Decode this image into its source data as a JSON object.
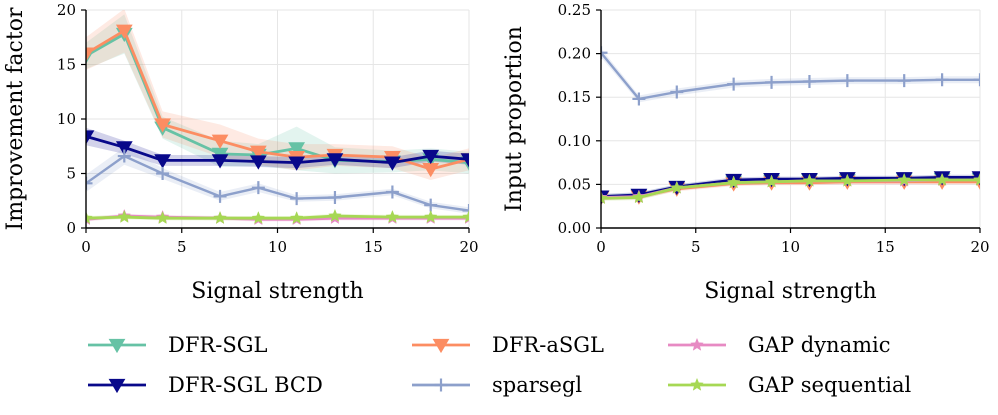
{
  "chart_data": [
    {
      "type": "line",
      "xlabel": "Signal strength",
      "ylabel": "Improvement factor",
      "xlim": [
        0,
        20
      ],
      "ylim": [
        0,
        20
      ],
      "xticks": [
        0,
        5,
        10,
        15,
        20
      ],
      "yticks": [
        0,
        5,
        10,
        15,
        20
      ],
      "grid": true,
      "x": [
        0,
        2,
        4,
        7,
        9,
        11,
        13,
        16,
        18,
        20
      ],
      "series": [
        {
          "name": "DFR-SGL",
          "color": "#66c2a5",
          "marker": "triangle-down",
          "values": [
            15.8,
            17.8,
            9.2,
            6.8,
            6.7,
            7.3,
            6.2,
            6.1,
            6.3,
            6.0
          ],
          "band": [
            1.2,
            1.8,
            1.0,
            1.2,
            1.0,
            2.0,
            1.2,
            1.0,
            1.0,
            1.0
          ]
        },
        {
          "name": "DFR-aSGL",
          "color": "#fc8d62",
          "marker": "triangle-down",
          "values": [
            16.0,
            18.1,
            9.5,
            8.0,
            7.0,
            6.5,
            6.7,
            6.5,
            5.4,
            6.3
          ],
          "band": [
            1.5,
            2.0,
            1.2,
            1.5,
            1.2,
            1.2,
            1.0,
            1.0,
            1.0,
            1.0
          ]
        },
        {
          "name": "DFR-SGL BCD",
          "color": "#08088a",
          "marker": "triangle-down",
          "values": [
            8.4,
            7.4,
            6.2,
            6.2,
            6.1,
            6.0,
            6.3,
            6.0,
            6.6,
            6.3
          ],
          "band": [
            0.8,
            0.6,
            0.5,
            0.5,
            0.5,
            0.5,
            0.5,
            0.5,
            0.5,
            0.5
          ]
        },
        {
          "name": "sparsegl",
          "color": "#8da0cb",
          "marker": "plus",
          "values": [
            4.1,
            6.6,
            5.0,
            2.9,
            3.7,
            2.7,
            2.8,
            3.3,
            2.1,
            1.6
          ],
          "band": [
            0.8,
            0.8,
            0.5,
            0.4,
            0.4,
            0.3,
            0.3,
            0.3,
            0.3,
            0.3
          ]
        },
        {
          "name": "GAP dynamic",
          "color": "#e78ac3",
          "marker": "star",
          "values": [
            0.8,
            1.1,
            1.0,
            0.9,
            0.8,
            0.8,
            0.9,
            0.9,
            0.9,
            0.9
          ],
          "band": [
            0.2,
            0.2,
            0.2,
            0.2,
            0.2,
            0.2,
            0.2,
            0.2,
            0.2,
            0.2
          ]
        },
        {
          "name": "GAP sequential",
          "color": "#a6d854",
          "marker": "star",
          "values": [
            0.9,
            1.0,
            0.9,
            0.9,
            0.9,
            0.9,
            1.1,
            1.0,
            1.0,
            1.0
          ],
          "band": [
            0.2,
            0.2,
            0.2,
            0.2,
            0.2,
            0.2,
            0.2,
            0.2,
            0.2,
            0.2
          ]
        }
      ]
    },
    {
      "type": "line",
      "xlabel": "Signal strength",
      "ylabel": "Input proportion",
      "xlim": [
        0,
        20
      ],
      "ylim": [
        0,
        0.25
      ],
      "xticks": [
        0,
        5,
        10,
        15,
        20
      ],
      "yticks": [
        0.0,
        0.05,
        0.1,
        0.15,
        0.2,
        0.25
      ],
      "grid": true,
      "x": [
        0,
        2,
        4,
        7,
        9,
        11,
        13,
        16,
        18,
        20
      ],
      "series": [
        {
          "name": "DFR-SGL",
          "color": "#66c2a5",
          "marker": "triangle-down",
          "values": [
            0.036,
            0.037,
            0.047,
            0.053,
            0.054,
            0.055,
            0.055,
            0.056,
            0.056,
            0.056
          ],
          "band": [
            0.003,
            0.003,
            0.003,
            0.003,
            0.003,
            0.003,
            0.003,
            0.003,
            0.003,
            0.003
          ]
        },
        {
          "name": "DFR-aSGL",
          "color": "#fc8d62",
          "marker": "triangle-down",
          "values": [
            0.035,
            0.036,
            0.045,
            0.051,
            0.052,
            0.052,
            0.053,
            0.053,
            0.053,
            0.053
          ],
          "band": [
            0.003,
            0.003,
            0.003,
            0.003,
            0.003,
            0.003,
            0.003,
            0.003,
            0.003,
            0.003
          ]
        },
        {
          "name": "DFR-SGL BCD",
          "color": "#08088a",
          "marker": "triangle-down",
          "values": [
            0.036,
            0.038,
            0.047,
            0.055,
            0.056,
            0.056,
            0.057,
            0.057,
            0.058,
            0.058
          ],
          "band": [
            0.003,
            0.003,
            0.003,
            0.003,
            0.003,
            0.003,
            0.003,
            0.003,
            0.003,
            0.003
          ]
        },
        {
          "name": "sparsegl",
          "color": "#8da0cb",
          "marker": "plus",
          "values": [
            0.201,
            0.148,
            0.156,
            0.165,
            0.167,
            0.168,
            0.169,
            0.169,
            0.17,
            0.17
          ],
          "band": [
            0.005,
            0.004,
            0.004,
            0.004,
            0.004,
            0.004,
            0.004,
            0.004,
            0.004,
            0.004
          ]
        },
        {
          "name": "GAP dynamic",
          "color": "#e78ac3",
          "marker": "star",
          "values": [
            0.035,
            0.036,
            0.046,
            0.052,
            0.053,
            0.054,
            0.054,
            0.054,
            0.055,
            0.055
          ],
          "band": [
            0.003,
            0.003,
            0.003,
            0.003,
            0.003,
            0.003,
            0.003,
            0.003,
            0.003,
            0.003
          ]
        },
        {
          "name": "GAP sequential",
          "color": "#a6d854",
          "marker": "star",
          "values": [
            0.034,
            0.035,
            0.046,
            0.052,
            0.053,
            0.054,
            0.054,
            0.055,
            0.055,
            0.055
          ],
          "band": [
            0.003,
            0.003,
            0.003,
            0.003,
            0.003,
            0.003,
            0.003,
            0.003,
            0.003,
            0.003
          ]
        }
      ]
    }
  ],
  "legend": {
    "placement": "bottom",
    "entries": [
      "DFR-SGL",
      "DFR-aSGL",
      "GAP dynamic",
      "DFR-SGL BCD",
      "sparsegl",
      "GAP sequential"
    ]
  }
}
